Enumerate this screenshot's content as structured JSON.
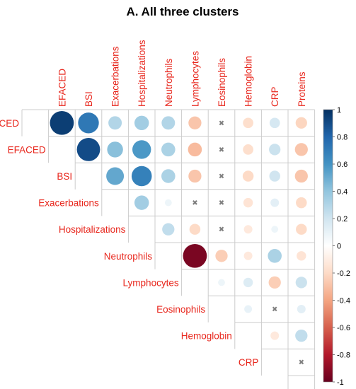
{
  "chart_data": {
    "type": "heatmap",
    "subtype": "correlation-matrix-upper-circles",
    "title": "A. All three clusters",
    "variables": [
      "FACED",
      "EFACED",
      "BSI",
      "Exacerbations",
      "Hospitalizations",
      "Neutrophils",
      "Lymphocytes",
      "Eosinophils",
      "Hemoglobin",
      "CRP",
      "Proteins"
    ],
    "row_labels": [
      "FACED",
      "EFACED",
      "BSI",
      "Exacerbations",
      "Hospitalizations",
      "Neutrophils",
      "Lymphocytes",
      "Eosinophils",
      "Hemoglobin",
      "CRP"
    ],
    "column_labels": [
      "EFACED",
      "BSI",
      "Exacerbations",
      "Hospitalizations",
      "Neutrophils",
      "Lymphocytes",
      "Eosinophils",
      "Hemoglobin",
      "CRP",
      "Proteins"
    ],
    "insignificant_marker": "✖",
    "cells": [
      {
        "row": "FACED",
        "col": "EFACED",
        "r": 0.95
      },
      {
        "row": "FACED",
        "col": "BSI",
        "r": 0.72
      },
      {
        "row": "FACED",
        "col": "Exacerbations",
        "r": 0.3
      },
      {
        "row": "FACED",
        "col": "Hospitalizations",
        "r": 0.35
      },
      {
        "row": "FACED",
        "col": "Neutrophils",
        "r": 0.3
      },
      {
        "row": "FACED",
        "col": "Lymphocytes",
        "r": -0.28
      },
      {
        "row": "FACED",
        "col": "Eosinophils",
        "r": 0.02,
        "insignificant": true
      },
      {
        "row": "FACED",
        "col": "Hemoglobin",
        "r": -0.18
      },
      {
        "row": "FACED",
        "col": "CRP",
        "r": 0.18
      },
      {
        "row": "FACED",
        "col": "Proteins",
        "r": -0.22
      },
      {
        "row": "EFACED",
        "col": "BSI",
        "r": 0.9
      },
      {
        "row": "EFACED",
        "col": "Exacerbations",
        "r": 0.42
      },
      {
        "row": "EFACED",
        "col": "Hospitalizations",
        "r": 0.58
      },
      {
        "row": "EFACED",
        "col": "Neutrophils",
        "r": 0.32
      },
      {
        "row": "EFACED",
        "col": "Lymphocytes",
        "r": -0.32
      },
      {
        "row": "EFACED",
        "col": "Eosinophils",
        "r": 0.02,
        "insignificant": true
      },
      {
        "row": "EFACED",
        "col": "Hemoglobin",
        "r": -0.18
      },
      {
        "row": "EFACED",
        "col": "CRP",
        "r": 0.22
      },
      {
        "row": "EFACED",
        "col": "Proteins",
        "r": -0.28
      },
      {
        "row": "BSI",
        "col": "Exacerbations",
        "r": 0.52
      },
      {
        "row": "BSI",
        "col": "Hospitalizations",
        "r": 0.68
      },
      {
        "row": "BSI",
        "col": "Neutrophils",
        "r": 0.32
      },
      {
        "row": "BSI",
        "col": "Lymphocytes",
        "r": -0.28
      },
      {
        "row": "BSI",
        "col": "Eosinophils",
        "r": 0.02,
        "insignificant": true
      },
      {
        "row": "BSI",
        "col": "Hemoglobin",
        "r": -0.2
      },
      {
        "row": "BSI",
        "col": "CRP",
        "r": 0.2
      },
      {
        "row": "BSI",
        "col": "Proteins",
        "r": -0.28
      },
      {
        "row": "Exacerbations",
        "col": "Hospitalizations",
        "r": 0.35
      },
      {
        "row": "Exacerbations",
        "col": "Neutrophils",
        "r": 0.08
      },
      {
        "row": "Exacerbations",
        "col": "Lymphocytes",
        "r": -0.02,
        "insignificant": true
      },
      {
        "row": "Exacerbations",
        "col": "Eosinophils",
        "r": 0.02,
        "insignificant": true
      },
      {
        "row": "Exacerbations",
        "col": "Hemoglobin",
        "r": -0.15
      },
      {
        "row": "Exacerbations",
        "col": "CRP",
        "r": 0.12
      },
      {
        "row": "Exacerbations",
        "col": "Proteins",
        "r": -0.2
      },
      {
        "row": "Hospitalizations",
        "col": "Neutrophils",
        "r": 0.25
      },
      {
        "row": "Hospitalizations",
        "col": "Lymphocytes",
        "r": -0.2
      },
      {
        "row": "Hospitalizations",
        "col": "Eosinophils",
        "r": 0.02,
        "insignificant": true
      },
      {
        "row": "Hospitalizations",
        "col": "Hemoglobin",
        "r": -0.12
      },
      {
        "row": "Hospitalizations",
        "col": "CRP",
        "r": 0.08
      },
      {
        "row": "Hospitalizations",
        "col": "Proteins",
        "r": -0.2
      },
      {
        "row": "Neutrophils",
        "col": "Lymphocytes",
        "r": -0.95
      },
      {
        "row": "Neutrophils",
        "col": "Eosinophils",
        "r": -0.25
      },
      {
        "row": "Neutrophils",
        "col": "Hemoglobin",
        "r": -0.12
      },
      {
        "row": "Neutrophils",
        "col": "CRP",
        "r": 0.32
      },
      {
        "row": "Neutrophils",
        "col": "Proteins",
        "r": -0.15
      },
      {
        "row": "Lymphocytes",
        "col": "Eosinophils",
        "r": 0.08
      },
      {
        "row": "Lymphocytes",
        "col": "Hemoglobin",
        "r": 0.15
      },
      {
        "row": "Lymphocytes",
        "col": "CRP",
        "r": -0.25
      },
      {
        "row": "Lymphocytes",
        "col": "Proteins",
        "r": 0.22
      },
      {
        "row": "Eosinophils",
        "col": "Hemoglobin",
        "r": 0.1
      },
      {
        "row": "Eosinophils",
        "col": "CRP",
        "r": 0.02,
        "insignificant": true
      },
      {
        "row": "Eosinophils",
        "col": "Proteins",
        "r": 0.12
      },
      {
        "row": "Hemoglobin",
        "col": "CRP",
        "r": -0.12
      },
      {
        "row": "Hemoglobin",
        "col": "Proteins",
        "r": 0.25
      },
      {
        "row": "CRP",
        "col": "Proteins",
        "r": 0.02,
        "insignificant": true
      }
    ],
    "colorbar": {
      "range": [
        -1,
        1
      ],
      "ticks": [
        "1",
        "0.8",
        "0.6",
        "0.4",
        "0.2",
        "0",
        "-0.2",
        "-0.4",
        "-0.6",
        "-0.8",
        "-1"
      ],
      "colors": [
        "#053061",
        "#2166ac",
        "#4393c3",
        "#92c5de",
        "#d1e5f0",
        "#ffffff",
        "#fddbc7",
        "#f4a582",
        "#d6604d",
        "#b2182b",
        "#67001f"
      ]
    },
    "label_color": "#e8261c",
    "grid_color": "#cccccc",
    "marker_color": "#7f7f7f"
  }
}
